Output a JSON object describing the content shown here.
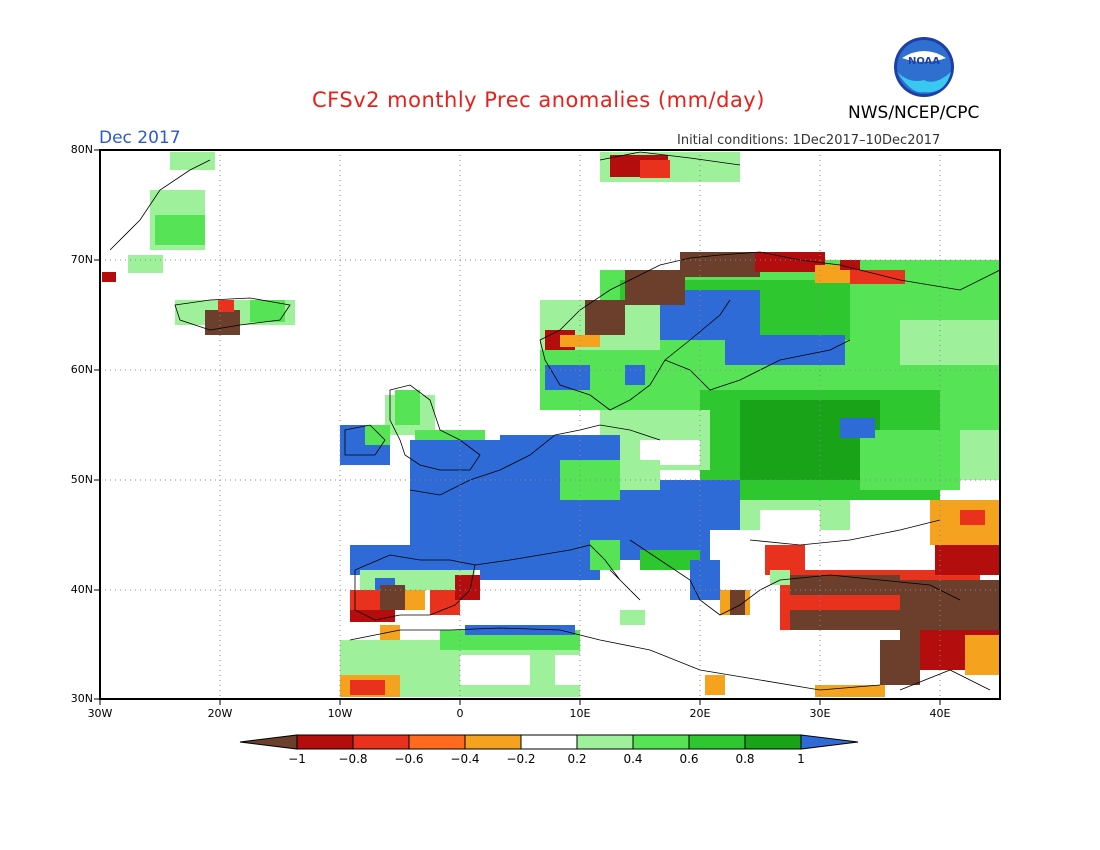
{
  "header": {
    "title": "CFSv2 monthly Prec anomalies (mm/day)",
    "agency": "NWS/NCEP/CPC",
    "period": "Dec 2017",
    "initial_conditions": "Initial conditions: 1Dec2017–10Dec2017",
    "logo_text": "NOAA"
  },
  "axes": {
    "lat_labels": [
      "80N",
      "70N",
      "60N",
      "50N",
      "40N",
      "30N"
    ],
    "lon_labels": [
      "30W",
      "20W",
      "10W",
      "0",
      "10E",
      "20E",
      "30E",
      "40E"
    ]
  },
  "colorbar": {
    "labels": [
      "−1",
      "−0.8",
      "−0.6",
      "−0.4",
      "−0.2",
      "0.2",
      "0.4",
      "0.6",
      "0.8",
      "1"
    ],
    "colors": [
      "#6b3f2b",
      "#b40d0d",
      "#e8321e",
      "#ff6a1e",
      "#f5a21e",
      "#ffffff",
      "#9ef19a",
      "#56e456",
      "#2fc72f",
      "#18a318",
      "#2f6bd6"
    ]
  },
  "palette": {
    "brown": "#6b3f2b",
    "darkred": "#b40d0d",
    "red": "#e8321e",
    "orange": "#f5a21e",
    "lightgreen": "#9ef19a",
    "green": "#56e456",
    "midgreen": "#2fc72f",
    "darkgreen": "#18a318",
    "blue": "#2f6bd6",
    "title_red": "#e8201a",
    "period_blue": "#2b58d8"
  }
}
